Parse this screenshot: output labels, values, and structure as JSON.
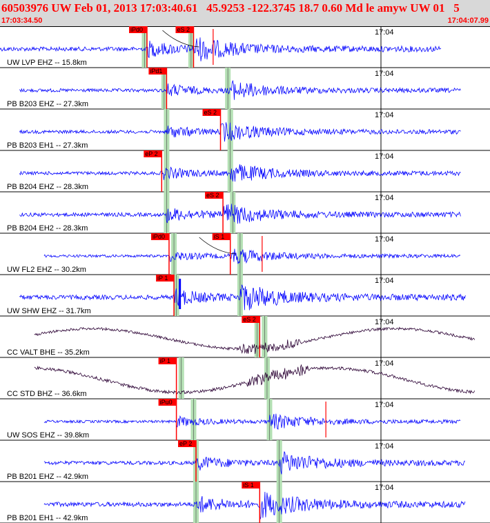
{
  "header": {
    "title": "60503976 UW Feb 01, 2013 17:03:40.61   45.9253 -122.3745 18.7 0.60 Md le amyw UW 01   5",
    "start_time": "17:03:34.50",
    "end_time": "17:04:07.99"
  },
  "colors": {
    "trace_blue": "#0000ff",
    "trace_dark": "#2a0033",
    "pick_red": "#ff0000",
    "window_green": "#b4e0b4",
    "header_bg": "#d8d8d8"
  },
  "chart_data": {
    "type": "seismogram",
    "time_range": [
      "17:03:34.50",
      "17:04:07.99"
    ],
    "time_tick": "17:04",
    "channels": [
      {
        "label": "UW LVP EHZ -- 15.8km",
        "color": "blue",
        "start": 0.0,
        "end": 0.9,
        "amp": 0.28,
        "type": "quake",
        "p": {
          "label": "iPd0",
          "t": 0.3
        },
        "s": {
          "label": "eS 2",
          "t": 0.395
        },
        "green": [
          0.295,
          0.39
        ],
        "red_ticks": [
          0.435
        ],
        "curve": true
      },
      {
        "label": "PB B203 EHZ -- 27.3km",
        "color": "blue",
        "start": 0.04,
        "end": 0.94,
        "amp": 0.22,
        "type": "quake",
        "p": {
          "label": "iPd1",
          "t": 0.34
        },
        "s": null,
        "green": [
          0.335,
          0.465
        ],
        "red_ticks": []
      },
      {
        "label": "PB B203 EH1 -- 27.3km",
        "color": "blue",
        "start": 0.04,
        "end": 0.94,
        "amp": 0.22,
        "type": "quake",
        "p": null,
        "s": {
          "label": "eS 2",
          "t": 0.45
        },
        "green": [
          0.34,
          0.47
        ],
        "red_ticks": []
      },
      {
        "label": "PB B204 EHZ -- 28.3km",
        "color": "blue",
        "start": 0.04,
        "end": 0.94,
        "amp": 0.22,
        "type": "quake",
        "p": {
          "label": "eP 2",
          "t": 0.33
        },
        "s": null,
        "green": [
          0.34,
          0.47
        ],
        "red_ticks": []
      },
      {
        "label": "PB B204 EH2 -- 28.3km",
        "color": "blue",
        "start": 0.04,
        "end": 0.94,
        "amp": 0.25,
        "type": "quake",
        "p": null,
        "s": {
          "label": "eS 2",
          "t": 0.455
        },
        "green": [
          0.34,
          0.475
        ],
        "red_ticks": []
      },
      {
        "label": "UW FL2 EHZ -- 30.2km",
        "color": "blue",
        "start": 0.09,
        "end": 0.94,
        "amp": 0.18,
        "type": "quake",
        "p": {
          "label": "iPd0",
          "t": 0.345
        },
        "s": {
          "label": "iS 1",
          "t": 0.47
        },
        "green": [
          0.355,
          0.49
        ],
        "red_ticks": [
          0.535
        ],
        "curve": true
      },
      {
        "label": "UW SHW EHZ -- 31.7km",
        "color": "blue",
        "start": 0.04,
        "end": 0.95,
        "amp": 0.3,
        "type": "quake",
        "p": {
          "label": "iP 1",
          "t": 0.355
        },
        "s": null,
        "green": [
          0.36,
          0.49
        ],
        "red_ticks": [],
        "blue_bar": 0.365
      },
      {
        "label": "CC VALT BHE -- 35.2km",
        "color": "dark",
        "start": 0.07,
        "end": 0.97,
        "amp": 0.35,
        "type": "wave",
        "p": null,
        "s": {
          "label": "eS 2",
          "t": 0.53
        },
        "green": [
          0.525,
          0.54
        ],
        "red_ticks": []
      },
      {
        "label": "CC STD BHZ -- 36.6km",
        "color": "dark",
        "start": 0.07,
        "end": 0.97,
        "amp": 0.42,
        "type": "wave",
        "p": {
          "label": "iP 1",
          "t": 0.36
        },
        "s": null,
        "green": [
          0.37,
          0.545
        ],
        "red_ticks": []
      },
      {
        "label": "UW SOS EHZ -- 39.8km",
        "color": "blue",
        "start": 0.09,
        "end": 0.94,
        "amp": 0.18,
        "type": "quake",
        "p": {
          "label": "iPu0",
          "t": 0.36
        },
        "s": null,
        "green": [
          0.395,
          0.55
        ],
        "red_ticks": [
          0.665
        ],
        "curve": true
      },
      {
        "label": "PB B201 EHZ -- 42.9km",
        "color": "blue",
        "start": 0.09,
        "end": 0.95,
        "amp": 0.25,
        "type": "quake",
        "p": {
          "label": "eP 2",
          "t": 0.4
        },
        "s": null,
        "green": [
          0.4,
          0.57
        ],
        "red_ticks": []
      },
      {
        "label": "PB B201 EH1 -- 42.9km",
        "color": "blue",
        "start": 0.09,
        "end": 0.95,
        "amp": 0.3,
        "type": "quake",
        "p": null,
        "s": {
          "label": "iS 1",
          "t": 0.53
        },
        "green": [
          0.4,
          0.57
        ],
        "red_ticks": []
      }
    ]
  }
}
